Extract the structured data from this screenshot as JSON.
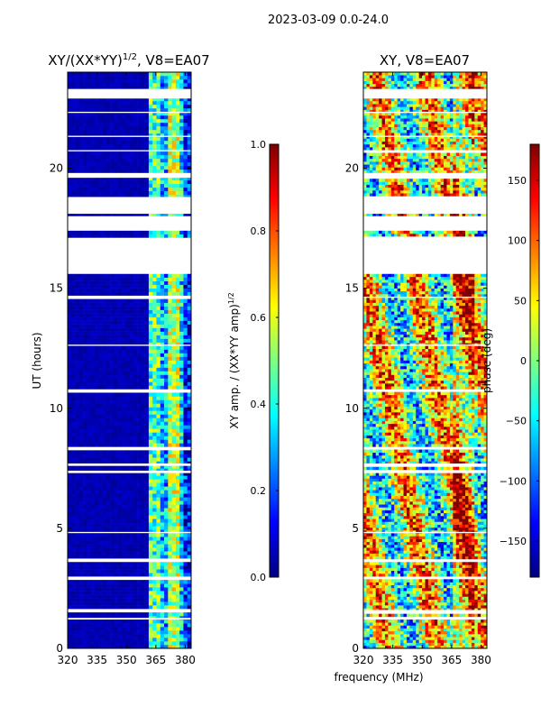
{
  "suptitle": "2023-03-09 0.0-24.0",
  "shared_xlabel": "frequency (MHz)",
  "colors": {
    "jet": [
      "#00007f",
      "#0000ff",
      "#007fff",
      "#00ffff",
      "#7fff7f",
      "#ffff00",
      "#ff7f00",
      "#ff0000",
      "#7f0000"
    ],
    "frame": "#000000",
    "gap": "#ffffff"
  },
  "chart_data": [
    {
      "type": "heatmap",
      "title_main": "XY/(XX*YY)",
      "title_sup": "1/2",
      "title_tail": ", V8=EA07",
      "xlabel": "",
      "ylabel": "UT (hours)",
      "xlim": [
        320,
        383
      ],
      "ylim": [
        0,
        24
      ],
      "xticks": [
        320,
        335,
        350,
        365,
        380
      ],
      "xtick_labels": [
        "320",
        "335",
        "350",
        "365",
        "380"
      ],
      "yticks": [
        0,
        5,
        10,
        15,
        20
      ],
      "ytick_labels": [
        "0",
        "5",
        "10",
        "15",
        "20"
      ],
      "flagged_hours": [
        [
          15.6,
          16.2
        ],
        [
          16.2,
          17.1
        ],
        [
          17.4,
          18.0
        ],
        [
          18.1,
          18.8
        ],
        [
          19.6,
          19.8
        ],
        [
          22.9,
          23.3
        ],
        [
          7.3,
          7.4
        ],
        [
          7.6,
          7.7
        ],
        [
          8.3,
          8.35
        ],
        [
          3.6,
          3.7
        ],
        [
          1.5,
          1.6
        ],
        [
          1.2,
          1.27
        ],
        [
          14.6,
          14.65
        ],
        [
          12.6,
          12.65
        ],
        [
          10.7,
          10.75
        ],
        [
          4.8,
          4.85
        ],
        [
          2.9,
          2.95
        ],
        [
          21.3,
          21.35
        ],
        [
          22.3,
          22.35
        ],
        [
          20.7,
          20.75
        ]
      ],
      "description_bands": [
        {
          "x_range": [
            320,
            362
          ],
          "value": 0.05
        },
        {
          "x_range": [
            362,
            367
          ],
          "value": 0.45
        },
        {
          "x_range": [
            367,
            372
          ],
          "value": 0.3
        },
        {
          "x_range": [
            372,
            377
          ],
          "value": 0.55
        },
        {
          "x_range": [
            377,
            380
          ],
          "value": 0.35
        },
        {
          "x_range": [
            380,
            383
          ],
          "value": 0.15
        }
      ],
      "colorbar": {
        "label_main": "XY amp. / (XX*YY amp)",
        "label_sup": "1/2",
        "range": [
          0.0,
          1.0
        ],
        "ticks": [
          0.0,
          0.2,
          0.4,
          0.6,
          0.8,
          1.0
        ],
        "tick_labels": [
          "0.0",
          "0.2",
          "0.4",
          "0.6",
          "0.8",
          "1.0"
        ]
      }
    },
    {
      "type": "heatmap",
      "title_main": "XY, V8=EA07",
      "xlabel": "frequency (MHz)",
      "ylabel": "",
      "xlim": [
        320,
        383
      ],
      "ylim": [
        0,
        24
      ],
      "xticks": [
        320,
        335,
        350,
        365,
        380
      ],
      "xtick_labels": [
        "320",
        "335",
        "350",
        "365",
        "380"
      ],
      "yticks": [
        0,
        5,
        10,
        15,
        20
      ],
      "ytick_labels": [
        "0",
        "5",
        "10",
        "15",
        "20"
      ],
      "colorbar": {
        "label_main": "phase (deg)",
        "range": [
          -180,
          180
        ],
        "ticks": [
          -150,
          -100,
          -50,
          0,
          50,
          100,
          150
        ],
        "tick_labels": [
          "−150",
          "−100",
          "−50",
          "0",
          "50",
          "100",
          "150"
        ]
      }
    }
  ]
}
